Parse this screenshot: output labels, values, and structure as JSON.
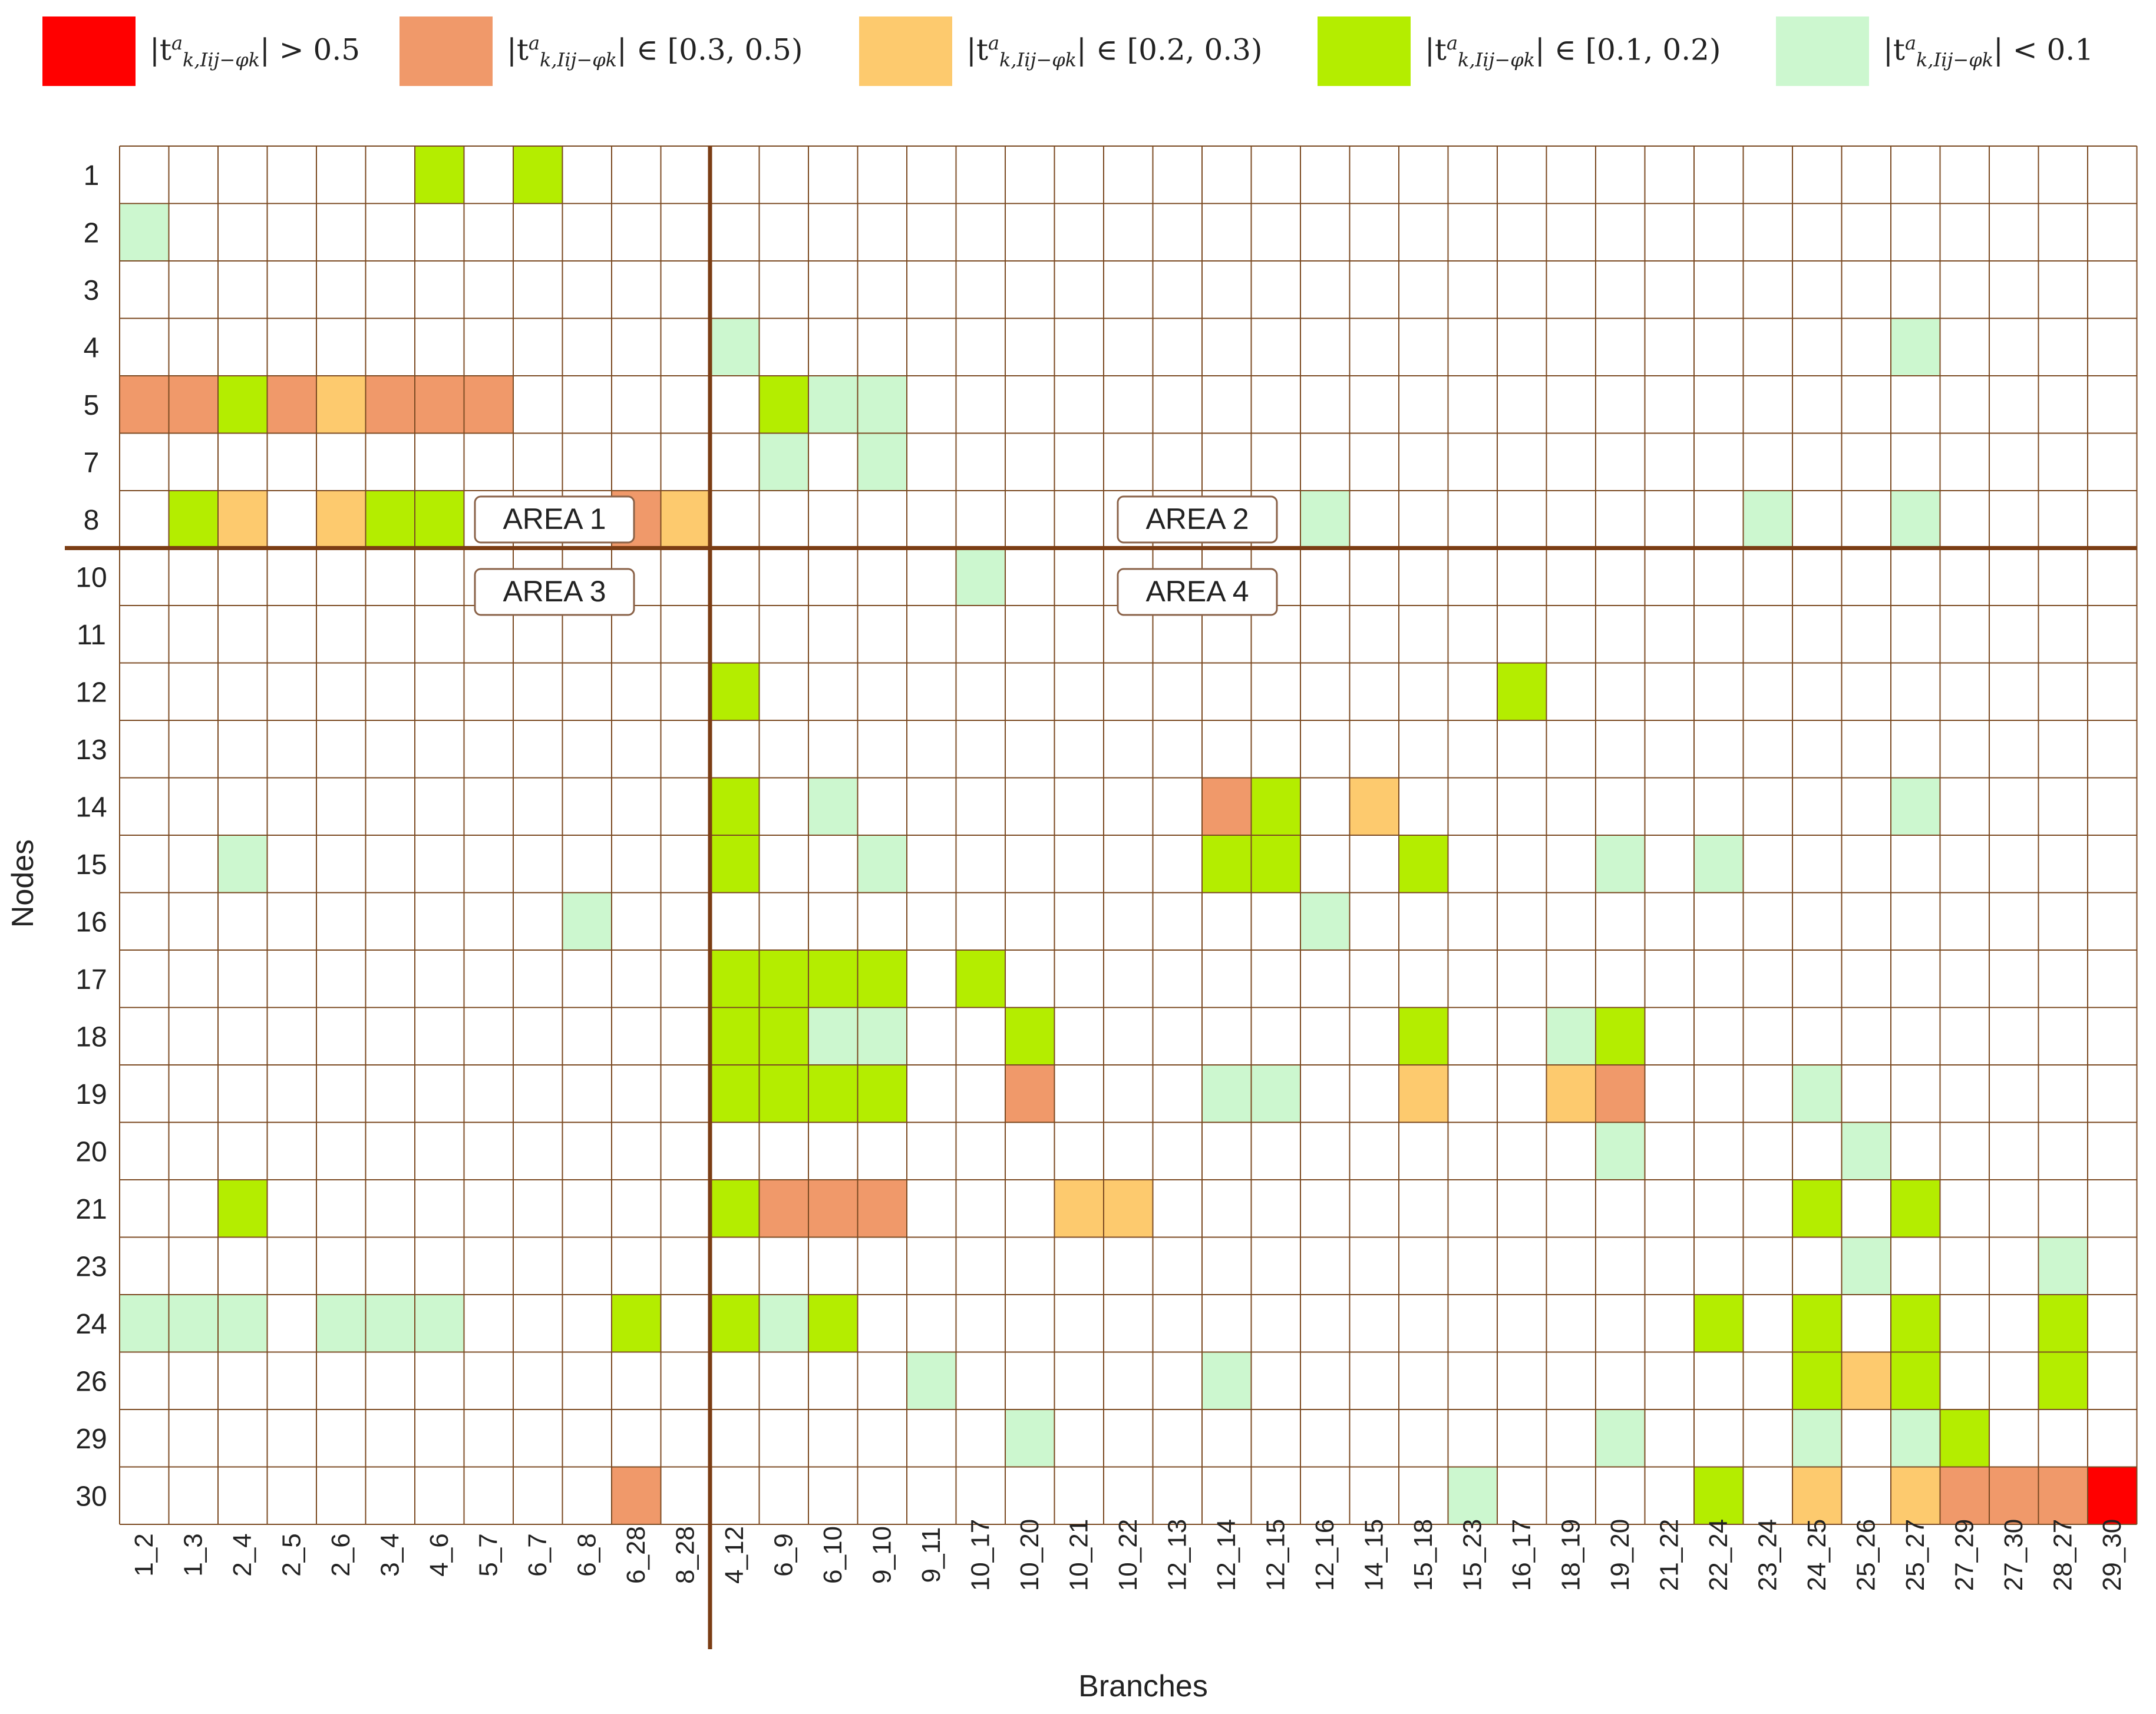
{
  "chart_data": {
    "type": "heatmap",
    "title": "",
    "xlabel": "Branches",
    "ylabel": "Nodes",
    "nodes": [
      "1",
      "2",
      "3",
      "4",
      "5",
      "7",
      "8",
      "10",
      "11",
      "12",
      "13",
      "14",
      "15",
      "16",
      "17",
      "18",
      "19",
      "20",
      "21",
      "23",
      "24",
      "26",
      "29",
      "30"
    ],
    "branches": [
      "1_2",
      "1_3",
      "2_4",
      "2_5",
      "2_6",
      "3_4",
      "4_6",
      "5_7",
      "6_7",
      "6_8",
      "6_28",
      "8_28",
      "4_12",
      "6_9",
      "6_10",
      "9_10",
      "9_11",
      "10_17",
      "10_20",
      "10_21",
      "10_22",
      "12_13",
      "12_14",
      "12_15",
      "12_16",
      "14_15",
      "15_18",
      "15_23",
      "16_17",
      "18_19",
      "19_20",
      "21_22",
      "22_24",
      "23_24",
      "24_25",
      "25_26",
      "25_27",
      "27_29",
      "27_30",
      "28_27",
      "29_30"
    ],
    "legend": [
      {
        "category": "gt_0.5",
        "color": "#ff0000",
        "label_prefix": "|t",
        "label_sub": "k,Iij−φk",
        "label_rel": "| > 0.5"
      },
      {
        "category": "0.3_0.5",
        "color": "#f0996a",
        "label_prefix": "|t",
        "label_sub": "k,Iij−φk",
        "label_rel": "| ∈ [0.3, 0.5)"
      },
      {
        "category": "0.2_0.3",
        "color": "#fdca6e",
        "label_prefix": "|t",
        "label_sub": "k,Iij−φk",
        "label_rel": "| ∈ [0.2, 0.3)"
      },
      {
        "category": "0.1_0.2",
        "color": "#b4ed00",
        "label_prefix": "|t",
        "label_sub": "k,Iij−φk",
        "label_rel": "| ∈ [0.1, 0.2)"
      },
      {
        "category": "lt_0.1",
        "color": "#ccf7cf",
        "label_prefix": "|t",
        "label_sub": "k,Iij−φk",
        "label_rel": "| < 0.1"
      }
    ],
    "areas": [
      "AREA 1",
      "AREA 2",
      "AREA 3",
      "AREA 4"
    ],
    "cells": [
      {
        "node": "1",
        "branch": "4_6",
        "category": "0.1_0.2"
      },
      {
        "node": "1",
        "branch": "6_7",
        "category": "0.1_0.2"
      },
      {
        "node": "2",
        "branch": "1_2",
        "category": "lt_0.1"
      },
      {
        "node": "4",
        "branch": "4_12",
        "category": "lt_0.1"
      },
      {
        "node": "4",
        "branch": "25_27",
        "category": "lt_0.1"
      },
      {
        "node": "5",
        "branch": "1_2",
        "category": "0.3_0.5"
      },
      {
        "node": "5",
        "branch": "1_3",
        "category": "0.3_0.5"
      },
      {
        "node": "5",
        "branch": "2_4",
        "category": "0.1_0.2"
      },
      {
        "node": "5",
        "branch": "2_5",
        "category": "0.3_0.5"
      },
      {
        "node": "5",
        "branch": "2_6",
        "category": "0.2_0.3"
      },
      {
        "node": "5",
        "branch": "3_4",
        "category": "0.3_0.5"
      },
      {
        "node": "5",
        "branch": "4_6",
        "category": "0.3_0.5"
      },
      {
        "node": "5",
        "branch": "5_7",
        "category": "0.3_0.5"
      },
      {
        "node": "5",
        "branch": "6_9",
        "category": "0.1_0.2"
      },
      {
        "node": "5",
        "branch": "6_10",
        "category": "lt_0.1"
      },
      {
        "node": "5",
        "branch": "9_10",
        "category": "lt_0.1"
      },
      {
        "node": "7",
        "branch": "6_9",
        "category": "lt_0.1"
      },
      {
        "node": "7",
        "branch": "9_10",
        "category": "lt_0.1"
      },
      {
        "node": "8",
        "branch": "1_3",
        "category": "0.1_0.2"
      },
      {
        "node": "8",
        "branch": "2_4",
        "category": "0.2_0.3"
      },
      {
        "node": "8",
        "branch": "2_6",
        "category": "0.2_0.3"
      },
      {
        "node": "8",
        "branch": "3_4",
        "category": "0.1_0.2"
      },
      {
        "node": "8",
        "branch": "4_6",
        "category": "0.1_0.2"
      },
      {
        "node": "8",
        "branch": "6_28",
        "category": "0.3_0.5"
      },
      {
        "node": "8",
        "branch": "8_28",
        "category": "0.2_0.3"
      },
      {
        "node": "8",
        "branch": "12_16",
        "category": "lt_0.1"
      },
      {
        "node": "8",
        "branch": "23_24",
        "category": "lt_0.1"
      },
      {
        "node": "8",
        "branch": "25_27",
        "category": "lt_0.1"
      },
      {
        "node": "10",
        "branch": "10_17",
        "category": "lt_0.1"
      },
      {
        "node": "12",
        "branch": "4_12",
        "category": "0.1_0.2"
      },
      {
        "node": "12",
        "branch": "16_17",
        "category": "0.1_0.2"
      },
      {
        "node": "14",
        "branch": "4_12",
        "category": "0.1_0.2"
      },
      {
        "node": "14",
        "branch": "6_10",
        "category": "lt_0.1"
      },
      {
        "node": "14",
        "branch": "12_14",
        "category": "0.3_0.5"
      },
      {
        "node": "14",
        "branch": "12_15",
        "category": "0.1_0.2"
      },
      {
        "node": "14",
        "branch": "14_15",
        "category": "0.2_0.3"
      },
      {
        "node": "14",
        "branch": "25_27",
        "category": "lt_0.1"
      },
      {
        "node": "15",
        "branch": "2_4",
        "category": "lt_0.1"
      },
      {
        "node": "15",
        "branch": "4_12",
        "category": "0.1_0.2"
      },
      {
        "node": "15",
        "branch": "9_10",
        "category": "lt_0.1"
      },
      {
        "node": "15",
        "branch": "12_14",
        "category": "0.1_0.2"
      },
      {
        "node": "15",
        "branch": "12_15",
        "category": "0.1_0.2"
      },
      {
        "node": "15",
        "branch": "15_18",
        "category": "0.1_0.2"
      },
      {
        "node": "15",
        "branch": "19_20",
        "category": "lt_0.1"
      },
      {
        "node": "15",
        "branch": "22_24",
        "category": "lt_0.1"
      },
      {
        "node": "16",
        "branch": "6_8",
        "category": "lt_0.1"
      },
      {
        "node": "16",
        "branch": "12_16",
        "category": "lt_0.1"
      },
      {
        "node": "17",
        "branch": "4_12",
        "category": "0.1_0.2"
      },
      {
        "node": "17",
        "branch": "6_9",
        "category": "0.1_0.2"
      },
      {
        "node": "17",
        "branch": "6_10",
        "category": "0.1_0.2"
      },
      {
        "node": "17",
        "branch": "9_10",
        "category": "0.1_0.2"
      },
      {
        "node": "17",
        "branch": "10_17",
        "category": "0.1_0.2"
      },
      {
        "node": "18",
        "branch": "4_12",
        "category": "0.1_0.2"
      },
      {
        "node": "18",
        "branch": "6_9",
        "category": "0.1_0.2"
      },
      {
        "node": "18",
        "branch": "6_10",
        "category": "lt_0.1"
      },
      {
        "node": "18",
        "branch": "9_10",
        "category": "lt_0.1"
      },
      {
        "node": "18",
        "branch": "10_20",
        "category": "0.1_0.2"
      },
      {
        "node": "18",
        "branch": "15_18",
        "category": "0.1_0.2"
      },
      {
        "node": "18",
        "branch": "18_19",
        "category": "lt_0.1"
      },
      {
        "node": "18",
        "branch": "19_20",
        "category": "0.1_0.2"
      },
      {
        "node": "19",
        "branch": "4_12",
        "category": "0.1_0.2"
      },
      {
        "node": "19",
        "branch": "6_9",
        "category": "0.1_0.2"
      },
      {
        "node": "19",
        "branch": "6_10",
        "category": "0.1_0.2"
      },
      {
        "node": "19",
        "branch": "9_10",
        "category": "0.1_0.2"
      },
      {
        "node": "19",
        "branch": "10_20",
        "category": "0.3_0.5"
      },
      {
        "node": "19",
        "branch": "12_14",
        "category": "lt_0.1"
      },
      {
        "node": "19",
        "branch": "12_15",
        "category": "lt_0.1"
      },
      {
        "node": "19",
        "branch": "15_18",
        "category": "0.2_0.3"
      },
      {
        "node": "19",
        "branch": "18_19",
        "category": "0.2_0.3"
      },
      {
        "node": "19",
        "branch": "19_20",
        "category": "0.3_0.5"
      },
      {
        "node": "19",
        "branch": "24_25",
        "category": "lt_0.1"
      },
      {
        "node": "20",
        "branch": "19_20",
        "category": "lt_0.1"
      },
      {
        "node": "20",
        "branch": "25_26",
        "category": "lt_0.1"
      },
      {
        "node": "21",
        "branch": "2_4",
        "category": "0.1_0.2"
      },
      {
        "node": "21",
        "branch": "4_12",
        "category": "0.1_0.2"
      },
      {
        "node": "21",
        "branch": "6_9",
        "category": "0.3_0.5"
      },
      {
        "node": "21",
        "branch": "6_10",
        "category": "0.3_0.5"
      },
      {
        "node": "21",
        "branch": "9_10",
        "category": "0.3_0.5"
      },
      {
        "node": "21",
        "branch": "10_21",
        "category": "0.2_0.3"
      },
      {
        "node": "21",
        "branch": "10_22",
        "category": "0.2_0.3"
      },
      {
        "node": "21",
        "branch": "24_25",
        "category": "0.1_0.2"
      },
      {
        "node": "21",
        "branch": "25_27",
        "category": "0.1_0.2"
      },
      {
        "node": "23",
        "branch": "25_26",
        "category": "lt_0.1"
      },
      {
        "node": "23",
        "branch": "28_27",
        "category": "lt_0.1"
      },
      {
        "node": "24",
        "branch": "1_2",
        "category": "lt_0.1"
      },
      {
        "node": "24",
        "branch": "1_3",
        "category": "lt_0.1"
      },
      {
        "node": "24",
        "branch": "2_4",
        "category": "lt_0.1"
      },
      {
        "node": "24",
        "branch": "2_6",
        "category": "lt_0.1"
      },
      {
        "node": "24",
        "branch": "3_4",
        "category": "lt_0.1"
      },
      {
        "node": "24",
        "branch": "4_6",
        "category": "lt_0.1"
      },
      {
        "node": "24",
        "branch": "6_28",
        "category": "0.1_0.2"
      },
      {
        "node": "24",
        "branch": "4_12",
        "category": "0.1_0.2"
      },
      {
        "node": "24",
        "branch": "6_9",
        "category": "lt_0.1"
      },
      {
        "node": "24",
        "branch": "6_10",
        "category": "0.1_0.2"
      },
      {
        "node": "24",
        "branch": "22_24",
        "category": "0.1_0.2"
      },
      {
        "node": "24",
        "branch": "24_25",
        "category": "0.1_0.2"
      },
      {
        "node": "24",
        "branch": "25_27",
        "category": "0.1_0.2"
      },
      {
        "node": "24",
        "branch": "28_27",
        "category": "0.1_0.2"
      },
      {
        "node": "26",
        "branch": "9_11",
        "category": "lt_0.1"
      },
      {
        "node": "26",
        "branch": "12_14",
        "category": "lt_0.1"
      },
      {
        "node": "26",
        "branch": "24_25",
        "category": "0.1_0.2"
      },
      {
        "node": "26",
        "branch": "25_26",
        "category": "0.2_0.3"
      },
      {
        "node": "26",
        "branch": "25_27",
        "category": "0.1_0.2"
      },
      {
        "node": "26",
        "branch": "28_27",
        "category": "0.1_0.2"
      },
      {
        "node": "29",
        "branch": "10_20",
        "category": "lt_0.1"
      },
      {
        "node": "29",
        "branch": "19_20",
        "category": "lt_0.1"
      },
      {
        "node": "29",
        "branch": "24_25",
        "category": "lt_0.1"
      },
      {
        "node": "29",
        "branch": "25_27",
        "category": "lt_0.1"
      },
      {
        "node": "29",
        "branch": "27_29",
        "category": "0.1_0.2"
      },
      {
        "node": "30",
        "branch": "6_28",
        "category": "0.3_0.5"
      },
      {
        "node": "30",
        "branch": "15_23",
        "category": "lt_0.1"
      },
      {
        "node": "30",
        "branch": "22_24",
        "category": "0.1_0.2"
      },
      {
        "node": "30",
        "branch": "24_25",
        "category": "0.2_0.3"
      },
      {
        "node": "30",
        "branch": "25_27",
        "category": "0.2_0.3"
      },
      {
        "node": "30",
        "branch": "27_29",
        "category": "0.3_0.5"
      },
      {
        "node": "30",
        "branch": "27_30",
        "category": "0.3_0.5"
      },
      {
        "node": "30",
        "branch": "28_27",
        "category": "0.3_0.5"
      },
      {
        "node": "30",
        "branch": "29_30",
        "category": "gt_0.5"
      }
    ]
  }
}
